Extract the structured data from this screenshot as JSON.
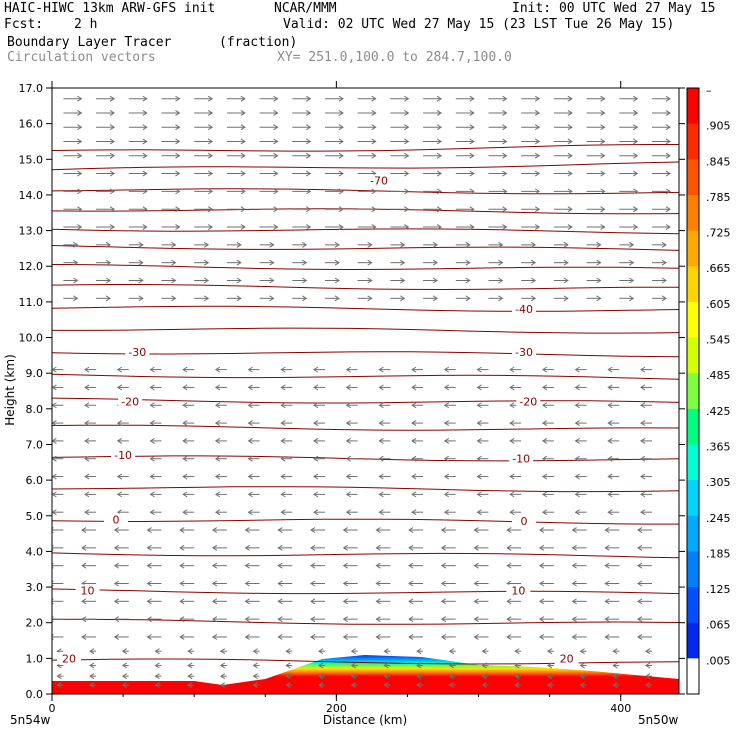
{
  "header": {
    "model": "HAIC-HIWC 13km ARW-GFS init",
    "org": "NCAR/MMM",
    "init": "Init: 00 UTC Wed 27 May 15",
    "fcst_label": "Fcst:",
    "fcst_value": "2 h",
    "valid": "Valid: 02 UTC Wed 27 May 15 (23 LST Tue 26 May 15)",
    "field": "Boundary Layer Tracer",
    "field_units": "(fraction)",
    "vectors": "Circulation vectors",
    "xy_range": "XY= 251.0,100.0 to 284.7,100.0"
  },
  "chart_data": {
    "type": "heatmap",
    "xlabel": "Distance (km)",
    "ylabel": "Height (km)",
    "xlim": [
      0,
      441
    ],
    "ylim": [
      0,
      17
    ],
    "x_ticks": [
      "0",
      "200",
      "400"
    ],
    "x_tick_values": [
      0,
      200,
      400
    ],
    "y_ticks": [
      "0.0",
      "1.0",
      "2.0",
      "3.0",
      "4.0",
      "5.0",
      "6.0",
      "7.0",
      "8.0",
      "9.0",
      "10.0",
      "11.0",
      "12.0",
      "13.0",
      "14.0",
      "15.0",
      "16.0",
      "17.0"
    ],
    "endpoint_left": "5n54w",
    "endpoint_right": "5n50w",
    "colorbar": {
      "labels": [
        "–",
        ".905",
        ".845",
        ".785",
        ".725",
        ".665",
        ".605",
        ".545",
        ".485",
        ".425",
        ".365",
        ".305",
        ".245",
        ".185",
        ".125",
        ".065",
        ".005"
      ],
      "colors": [
        "#ff0000",
        "#ff2a00",
        "#ff5500",
        "#ff8000",
        "#ffaa00",
        "#ffd400",
        "#ffff00",
        "#d4ff00",
        "#80ff40",
        "#00ff80",
        "#00ffd4",
        "#00d4ff",
        "#00aaff",
        "#0080ff",
        "#0050ff",
        "#0028f0",
        "#ffffff"
      ]
    },
    "contour_labels": [
      {
        "text": "-70",
        "x": 230,
        "y": 14.4
      },
      {
        "text": "-40",
        "x": 332,
        "y": 10.8
      },
      {
        "text": "-30",
        "x": 60,
        "y": 9.6
      },
      {
        "text": "-30",
        "x": 332,
        "y": 9.6
      },
      {
        "text": "-20",
        "x": 55,
        "y": 8.2
      },
      {
        "text": "-20",
        "x": 335,
        "y": 8.2
      },
      {
        "text": "-10",
        "x": 50,
        "y": 6.7
      },
      {
        "text": "-10",
        "x": 330,
        "y": 6.6
      },
      {
        "text": "0",
        "x": 45,
        "y": 4.9
      },
      {
        "text": "0",
        "x": 332,
        "y": 4.85
      },
      {
        "text": "10",
        "x": 25,
        "y": 2.9
      },
      {
        "text": "10",
        "x": 328,
        "y": 2.9
      },
      {
        "text": "20",
        "x": 12,
        "y": 1.0
      },
      {
        "text": "20",
        "x": 362,
        "y": 1.0
      }
    ],
    "contour_levels_km": [
      0.95,
      2.05,
      2.9,
      3.95,
      4.9,
      5.8,
      6.65,
      7.5,
      8.25,
      8.95,
      9.6,
      10.25,
      10.85,
      11.45,
      12.0,
      12.55,
      13.05,
      13.6,
      14.15,
      14.7,
      15.2
    ],
    "tracer_field": {
      "description_free": true,
      "core_top_km": [
        [
          0,
          0.3
        ],
        [
          60,
          0.3
        ],
        [
          100,
          0.3
        ],
        [
          120,
          0.2
        ],
        [
          150,
          0.35
        ],
        [
          170,
          0.6
        ],
        [
          190,
          0.85
        ],
        [
          220,
          0.95
        ],
        [
          260,
          0.9
        ],
        [
          300,
          0.7
        ],
        [
          340,
          0.65
        ],
        [
          380,
          0.55
        ],
        [
          410,
          0.45
        ],
        [
          441,
          0.35
        ]
      ]
    },
    "wind_rows_km": [
      16.7,
      16.3,
      15.9,
      15.5,
      15.1,
      14.6,
      14.1,
      13.6,
      13.1,
      12.6,
      12.1,
      11.6,
      11.1,
      10.6,
      10.1,
      9.6,
      9.1,
      8.6,
      8.1,
      7.6,
      7.1,
      6.6,
      6.1,
      5.6,
      5.1,
      4.6,
      4.1,
      3.6,
      3.1,
      2.6,
      2.1,
      1.6,
      1.2,
      0.8,
      0.5,
      0.25
    ]
  }
}
